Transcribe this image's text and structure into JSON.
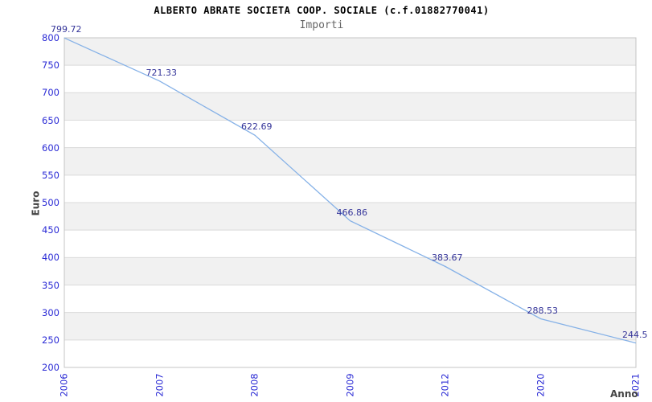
{
  "header": {
    "title": "ALBERTO ABRATE SOCIETA COOP. SOCIALE (c.f.01882770041)",
    "subtitle": "Importi"
  },
  "chart_data": {
    "type": "line",
    "title": "ALBERTO ABRATE SOCIETA COOP. SOCIALE (c.f.01882770041)",
    "subtitle": "Importi",
    "xlabel": "Anno",
    "ylabel": "Euro",
    "categories": [
      "2006",
      "2007",
      "2008",
      "2009",
      "2012",
      "2020",
      "2021"
    ],
    "values": [
      799.72,
      721.33,
      622.69,
      466.86,
      383.67,
      288.53,
      244.5
    ],
    "point_labels": [
      "799.72",
      "721.33",
      "622.69",
      "466.86",
      "383.67",
      "288.53",
      "244.5"
    ],
    "ylim": [
      200,
      800
    ],
    "ytick_step": 50,
    "grid": "horizontal-bands-alternating",
    "legend": "none",
    "markers": "none",
    "colors": {
      "line": "#85b1e7",
      "tick_label": "#2b2bd5",
      "point_label": "#343499",
      "band_gray": "#f1f1f1",
      "band_white": "#ffffff",
      "gridline": "#dadada",
      "plot_border": "#c4c4c4",
      "axis_title": "#444444",
      "title": "#000000",
      "subtitle": "#666666"
    }
  }
}
